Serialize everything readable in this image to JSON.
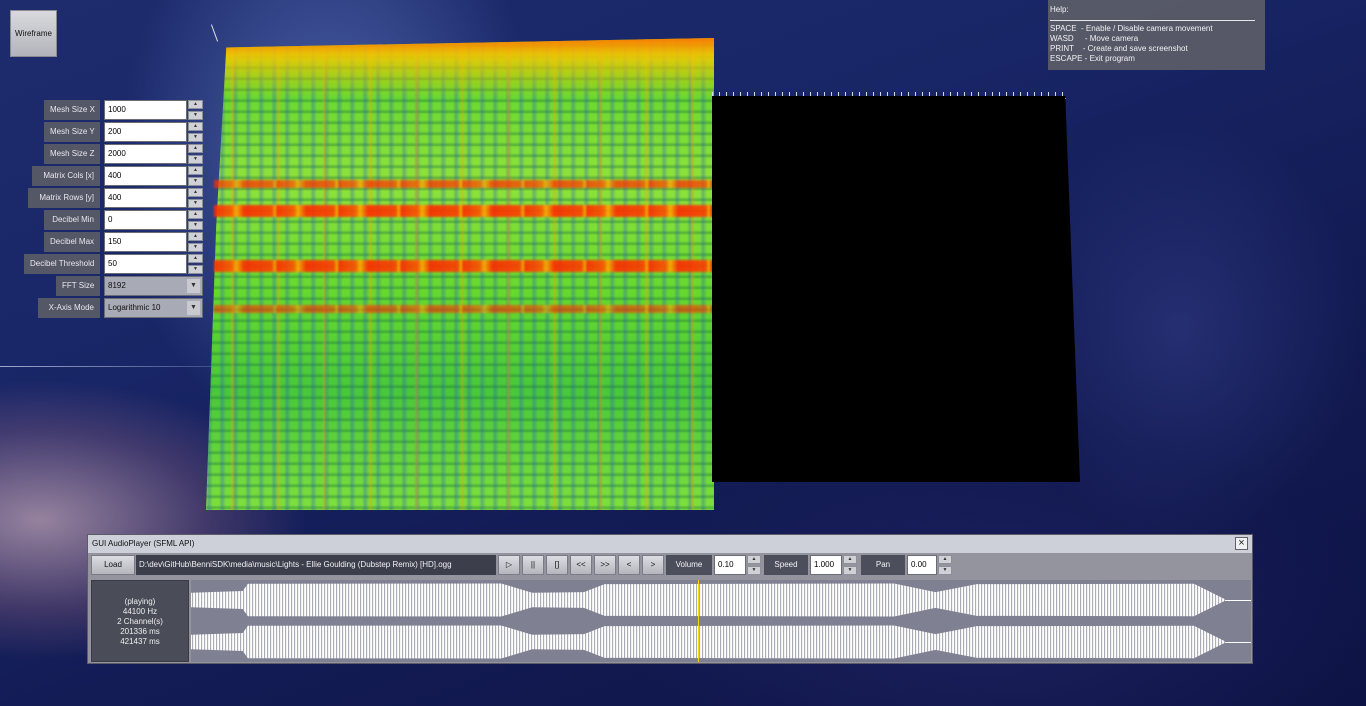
{
  "wireframe_button": "Wireframe",
  "settings": [
    {
      "label": "Mesh Size X",
      "value": "1000",
      "kind": "spin"
    },
    {
      "label": "Mesh Size Y",
      "value": "200",
      "kind": "spin"
    },
    {
      "label": "Mesh Size Z",
      "value": "2000",
      "kind": "spin"
    },
    {
      "label": "Matrix Cols [x]",
      "value": "400",
      "kind": "spin"
    },
    {
      "label": "Matrix Rows [y]",
      "value": "400",
      "kind": "spin"
    },
    {
      "label": "Decibel Min",
      "value": "0",
      "kind": "spin"
    },
    {
      "label": "Decibel Max",
      "value": "150",
      "kind": "spin"
    },
    {
      "label": "Decibel Threshold",
      "value": "50",
      "kind": "spin"
    },
    {
      "label": "FFT Size",
      "value": "8192",
      "kind": "select"
    },
    {
      "label": "X-Axis Mode",
      "value": "Logarithmic 10",
      "kind": "select"
    }
  ],
  "help": {
    "title": "Help:",
    "lines": [
      "SPACE  - Enable / Disable camera movement",
      "WASD     - Move camera",
      "PRINT    - Create and save screenshot",
      "ESCAPE - Exit program"
    ]
  },
  "player": {
    "title": "GUI AudioPlayer (SFML API)",
    "close": "×",
    "load": "Load",
    "path": "D:\\dev\\GitHub\\BenniSDK\\media\\music\\Lights - Ellie Goulding (Dubstep Remix) [HD].ogg",
    "buttons": [
      "▷",
      "||",
      "[]",
      "<<",
      ">>",
      "<",
      ">"
    ],
    "volume_label": "Volume",
    "volume_value": "0.10",
    "speed_label": "Speed",
    "speed_value": "1.000",
    "pan_label": "Pan",
    "pan_value": "0.00",
    "info": [
      "(playing)",
      "44100 Hz",
      "2 Channel(s)",
      "201336 ms",
      "421437 ms"
    ],
    "playhead_fraction": 0.478
  },
  "colors": {
    "accent_playhead": "#f5d800",
    "spectrum_hot": "#ff2a00",
    "spectrum_mid": "#8fe23a"
  }
}
